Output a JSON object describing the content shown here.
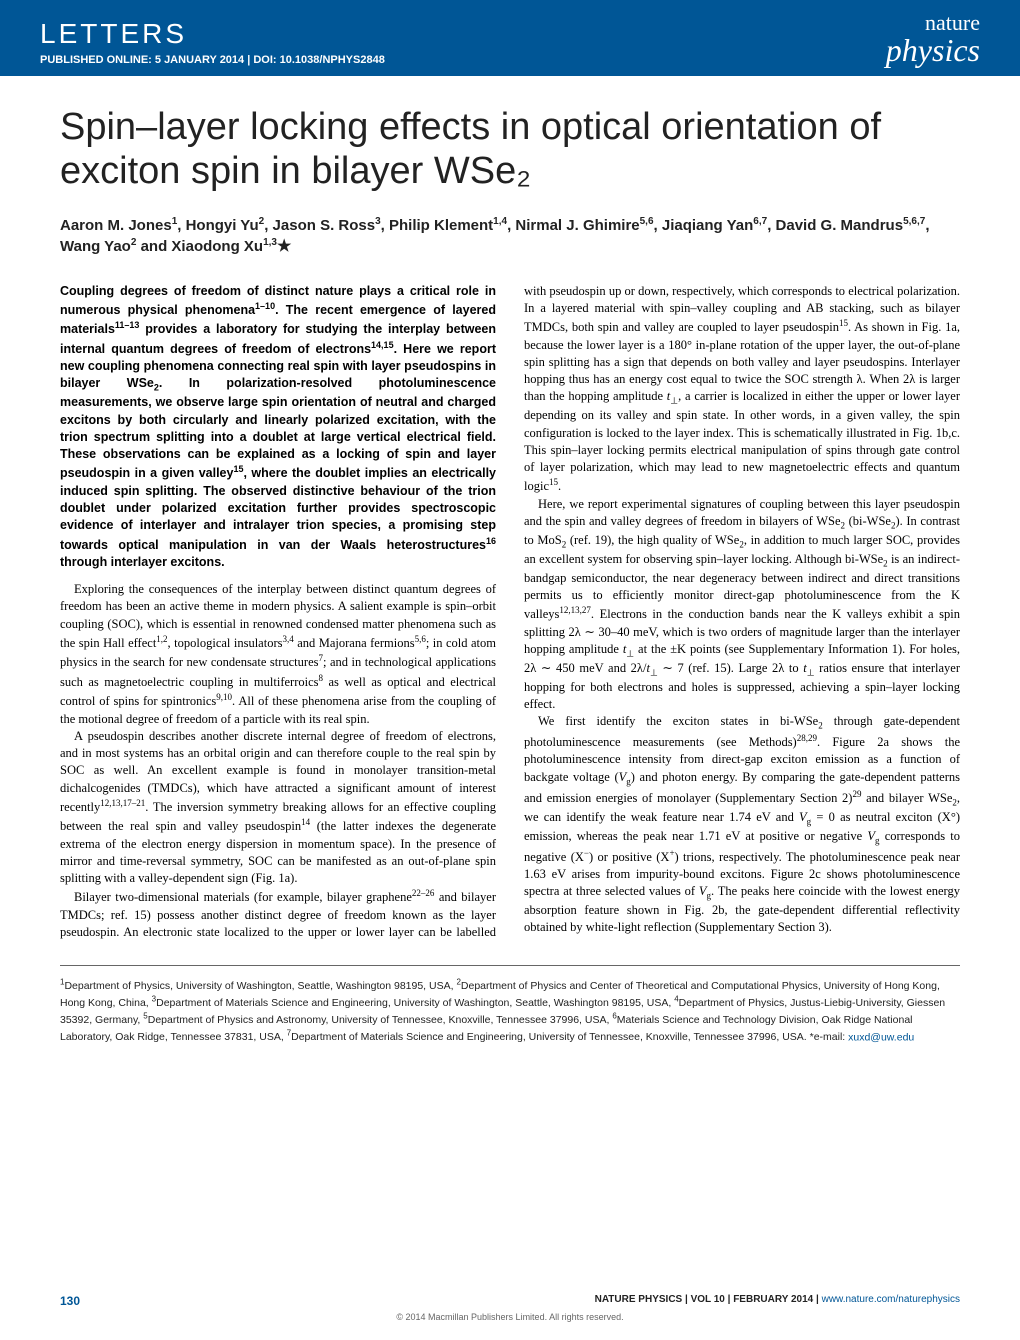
{
  "header": {
    "letters": "LETTERS",
    "pub_line": "PUBLISHED ONLINE: 5 JANUARY 2014 | DOI: 10.1038/NPHYS2848",
    "journal_top": "nature",
    "journal_bottom": "physics"
  },
  "title": "Spin–layer locking effects in optical orientation of exciton spin in bilayer WSe₂",
  "authors_html": "Aaron M. Jones<sup>1</sup>, Hongyi Yu<sup>2</sup>, Jason S. Ross<sup>3</sup>, Philip Klement<sup>1,4</sup>, Nirmal J. Ghimire<sup>5,6</sup>, Jiaqiang Yan<sup>6,7</sup>, David G. Mandrus<sup>5,6,7</sup>, Wang Yao<sup>2</sup> and Xiaodong Xu<sup>1,3</sup><span class='star'>★</span>",
  "abstract": "Coupling degrees of freedom of distinct nature plays a critical role in numerous physical phenomena<sup>1–10</sup>. The recent emergence of layered materials<sup>11–13</sup> provides a laboratory for studying the interplay between internal quantum degrees of freedom of electrons<sup>14,15</sup>. Here we report new coupling phenomena connecting real spin with layer pseudospins in bilayer WSe<sub>2</sub>. In polarization-resolved photoluminescence measurements, we observe large spin orientation of neutral and charged excitons by both circularly and linearly polarized excitation, with the trion spectrum splitting into a doublet at large vertical electrical field. These observations can be explained as a locking of spin and layer pseudospin in a given valley<sup>15</sup>, where the doublet implies an electrically induced spin splitting. The observed distinctive behaviour of the trion doublet under polarized excitation further provides spectroscopic evidence of interlayer and intralayer trion species, a promising step towards optical manipulation in van der Waals heterostructures<sup>16</sup> through interlayer excitons.",
  "paragraphs": [
    "Exploring the consequences of the interplay between distinct quantum degrees of freedom has been an active theme in modern physics. A salient example is spin–orbit coupling (SOC), which is essential in renowned condensed matter phenomena such as the spin Hall effect<sup>1,2</sup>, topological insulators<sup>3,4</sup> and Majorana fermions<sup>5,6</sup>; in cold atom physics in the search for new condensate structures<sup>7</sup>; and in technological applications such as magnetoelectric coupling in multiferroics<sup>8</sup> as well as optical and electrical control of spins for spintronics<sup>9,10</sup>. All of these phenomena arise from the coupling of the motional degree of freedom of a particle with its real spin.",
    "A pseudospin describes another discrete internal degree of freedom of electrons, and in most systems has an orbital origin and can therefore couple to the real spin by SOC as well. An excellent example is found in monolayer transition-metal dichalcogenides (TMDCs), which have attracted a significant amount of interest recently<sup>12,13,17–21</sup>. The inversion symmetry breaking allows for an effective coupling between the real spin and valley pseudospin<sup>14</sup> (the latter indexes the degenerate extrema of the electron energy dispersion in momentum space). In the presence of mirror and time-reversal symmetry, SOC can be manifested as an out-of-plane spin splitting with a valley-dependent sign (Fig. 1a).",
    "Bilayer two-dimensional materials (for example, bilayer graphene<sup>22–26</sup> and bilayer TMDCs; ref. 15) possess another distinct degree of freedom known as the layer pseudospin. An electronic state localized to the upper or lower layer can be labelled with pseudospin up or down, respectively, which corresponds to electrical polarization. In a layered material with spin–valley coupling and AB stacking, such as bilayer TMDCs, both spin and valley are coupled to layer pseudospin<sup>15</sup>. As shown in Fig. 1a, because the lower layer is a 180° in-plane rotation of the upper layer, the out-of-plane spin splitting has a sign that depends on both valley and layer pseudospins. Interlayer hopping thus has an energy cost equal to twice the SOC strength λ. When 2λ is larger than the hopping amplitude <i>t</i><sub>⊥</sub>, a carrier is localized in either the upper or lower layer depending on its valley and spin state. In other words, in a given valley, the spin configuration is locked to the layer index. This is schematically illustrated in Fig. 1b,c. This spin–layer locking permits electrical manipulation of spins through gate control of layer polarization, which may lead to new magnetoelectric effects and quantum logic<sup>15</sup>.",
    "Here, we report experimental signatures of coupling between this layer pseudospin and the spin and valley degrees of freedom in bilayers of WSe<sub>2</sub> (bi-WSe<sub>2</sub>). In contrast to MoS<sub>2</sub> (ref. 19), the high quality of WSe<sub>2</sub>, in addition to much larger SOC, provides an excellent system for observing spin–layer locking. Although bi-WSe<sub>2</sub> is an indirect-bandgap semiconductor, the near degeneracy between indirect and direct transitions permits us to efficiently monitor direct-gap photoluminescence from the K valleys<sup>12,13,27</sup>. Electrons in the conduction bands near the K valleys exhibit a spin splitting 2λ ∼ 30–40 meV, which is two orders of magnitude larger than the interlayer hopping amplitude <i>t</i><sub>⊥</sub> at the ±K points (see Supplementary Information 1). For holes, 2λ ∼ 450 meV and 2λ/<i>t</i><sub>⊥</sub> ∼ 7 (ref. 15). Large 2λ to <i>t</i><sub>⊥</sub> ratios ensure that interlayer hopping for both electrons and holes is suppressed, achieving a spin–layer locking effect.",
    "We first identify the exciton states in bi-WSe<sub>2</sub> through gate-dependent photoluminescence measurements (see Methods)<sup>28,29</sup>. Figure 2a shows the photoluminescence intensity from direct-gap exciton emission as a function of backgate voltage (<i>V</i><sub>g</sub>) and photon energy. By comparing the gate-dependent patterns and emission energies of monolayer (Supplementary Section 2)<sup>29</sup> and bilayer WSe<sub>2</sub>, we can identify the weak feature near 1.74 eV and <i>V</i><sub>g</sub> = 0 as neutral exciton (X°) emission, whereas the peak near 1.71 eV at positive or negative <i>V</i><sub>g</sub> corresponds to negative (X<sup>−</sup>) or positive (X<sup>+</sup>) trions, respectively. The photoluminescence peak near 1.63 eV arises from impurity-bound excitons. Figure 2c shows photoluminescence spectra at three selected values of <i>V</i><sub>g</sub>. The peaks here coincide with the lowest energy absorption feature shown in Fig. 2b, the gate-dependent differential reflectivity obtained by white-light reflection (Supplementary Section 3)."
  ],
  "affiliations": "<sup>1</sup>Department of Physics, University of Washington, Seattle, Washington 98195, USA, <sup>2</sup>Department of Physics and Center of Theoretical and Computational Physics, University of Hong Kong, Hong Kong, China, <sup>3</sup>Department of Materials Science and Engineering, University of Washington, Seattle, Washington 98195, USA, <sup>4</sup>Department of Physics, Justus-Liebig-University, Giessen 35392, Germany, <sup>5</sup>Department of Physics and Astronomy, University of Tennessee, Knoxville, Tennessee 37996, USA, <sup>6</sup>Materials Science and Technology Division, Oak Ridge National Laboratory, Oak Ridge, Tennessee 37831, USA, <sup>7</sup>Department of Materials Science and Engineering, University of Tennessee, Knoxville, Tennessee 37996, USA. *e-mail: ",
  "email": "xuxd@uw.edu",
  "footer": {
    "page_num": "130",
    "right_text": "NATURE PHYSICS | VOL 10 | FEBRUARY 2014 | ",
    "right_link": "www.nature.com/naturephysics",
    "copyright": "© 2014 Macmillan Publishers Limited. All rights reserved."
  },
  "colors": {
    "brand_blue": "#005696",
    "text": "#000000",
    "bg": "#ffffff",
    "rule": "#666666"
  }
}
